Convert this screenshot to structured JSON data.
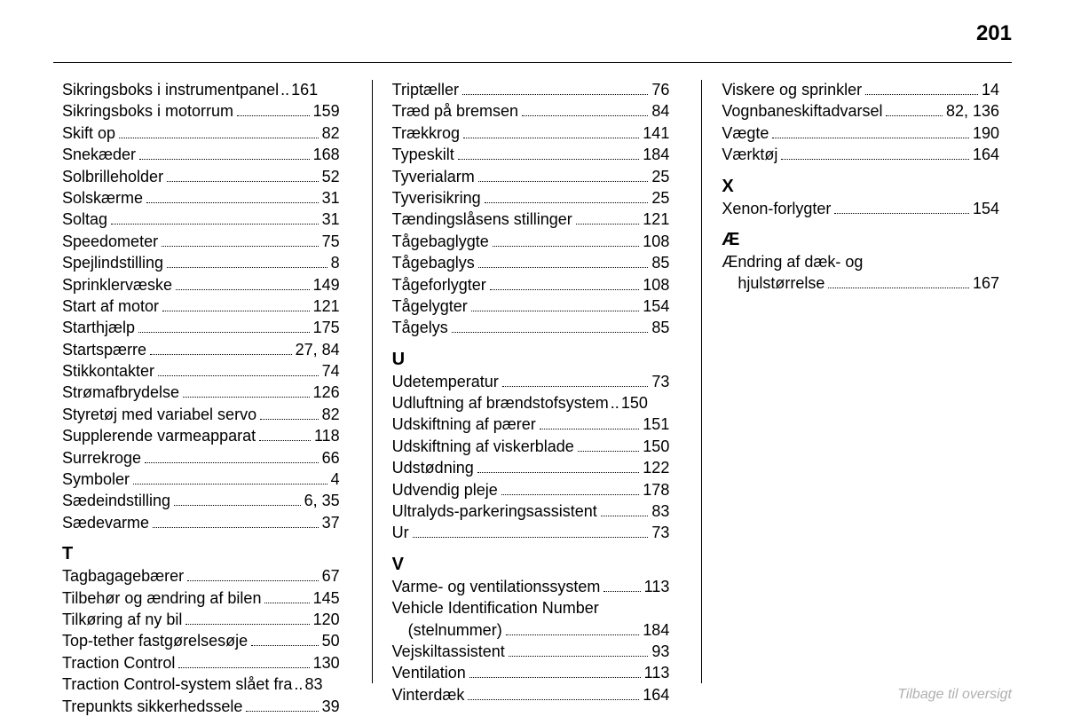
{
  "page": {
    "number": "201",
    "footer": "Tilbage til oversigt",
    "text_color": "#000000",
    "footer_color": "#b0b0b0",
    "background_color": "#ffffff",
    "font_size_entry": 18,
    "font_size_section": 20,
    "font_size_pagenum": 24
  },
  "columns": [
    [
      {
        "type": "entry",
        "label": "Sikringsboks i instrumentpanel",
        "page": "161",
        "dots": ".."
      },
      {
        "type": "entry",
        "label": "Sikringsboks i motorrum",
        "page": "159"
      },
      {
        "type": "entry",
        "label": "Skift op",
        "page": "82"
      },
      {
        "type": "entry",
        "label": "Snekæder",
        "page": "168"
      },
      {
        "type": "entry",
        "label": "Solbrilleholder",
        "page": "52"
      },
      {
        "type": "entry",
        "label": "Solskærme",
        "page": "31"
      },
      {
        "type": "entry",
        "label": "Soltag",
        "page": "31"
      },
      {
        "type": "entry",
        "label": "Speedometer",
        "page": "75"
      },
      {
        "type": "entry",
        "label": "Spejlindstilling",
        "page": "8"
      },
      {
        "type": "entry",
        "label": "Sprinklervæske",
        "page": "149"
      },
      {
        "type": "entry",
        "label": "Start af motor",
        "page": "121"
      },
      {
        "type": "entry",
        "label": "Starthjælp",
        "page": "175"
      },
      {
        "type": "entry",
        "label": "Startspærre",
        "page": "27, 84"
      },
      {
        "type": "entry",
        "label": "Stikkontakter",
        "page": "74"
      },
      {
        "type": "entry",
        "label": "Strømafbrydelse",
        "page": "126"
      },
      {
        "type": "entry",
        "label": "Styretøj med variabel servo",
        "page": "82"
      },
      {
        "type": "entry",
        "label": "Supplerende varmeapparat",
        "page": "118"
      },
      {
        "type": "entry",
        "label": "Surrekroge",
        "page": "66"
      },
      {
        "type": "entry",
        "label": "Symboler",
        "page": "4"
      },
      {
        "type": "entry",
        "label": "Sædeindstilling",
        "page": "6, 35"
      },
      {
        "type": "entry",
        "label": "Sædevarme",
        "page": "37"
      },
      {
        "type": "section",
        "label": "T"
      },
      {
        "type": "entry",
        "label": "Tagbagagebærer",
        "page": "67"
      },
      {
        "type": "entry",
        "label": "Tilbehør og ændring af bilen",
        "page": "145"
      },
      {
        "type": "entry",
        "label": "Tilkøring af ny bil",
        "page": "120"
      },
      {
        "type": "entry",
        "label": "Top-tether fastgørelsesøje",
        "page": "50"
      },
      {
        "type": "entry",
        "label": "Traction Control",
        "page": "130"
      },
      {
        "type": "entry",
        "label": "Traction Control-system slået fra",
        "page": "83",
        "dots": ".."
      },
      {
        "type": "entry",
        "label": "Trepunkts sikkerhedssele",
        "page": "39"
      }
    ],
    [
      {
        "type": "entry",
        "label": "Triptæller",
        "page": "76"
      },
      {
        "type": "entry",
        "label": "Træd på bremsen",
        "page": "84"
      },
      {
        "type": "entry",
        "label": "Trækkrog",
        "page": "141"
      },
      {
        "type": "entry",
        "label": "Typeskilt",
        "page": "184"
      },
      {
        "type": "entry",
        "label": "Tyverialarm",
        "page": "25"
      },
      {
        "type": "entry",
        "label": "Tyverisikring",
        "page": "25"
      },
      {
        "type": "entry",
        "label": "Tændingslåsens stillinger",
        "page": "121"
      },
      {
        "type": "entry",
        "label": "Tågebaglygte",
        "page": "108"
      },
      {
        "type": "entry",
        "label": "Tågebaglys",
        "page": "85"
      },
      {
        "type": "entry",
        "label": "Tågeforlygter",
        "page": "108"
      },
      {
        "type": "entry",
        "label": "Tågelygter",
        "page": "154"
      },
      {
        "type": "entry",
        "label": "Tågelys",
        "page": "85"
      },
      {
        "type": "section",
        "label": "U"
      },
      {
        "type": "entry",
        "label": "Udetemperatur",
        "page": "73"
      },
      {
        "type": "entry",
        "label": "Udluftning af brændstofsystem",
        "page": "150",
        "dots": ".."
      },
      {
        "type": "entry",
        "label": "Udskiftning af pærer",
        "page": "151"
      },
      {
        "type": "entry",
        "label": "Udskiftning af viskerblade",
        "page": "150"
      },
      {
        "type": "entry",
        "label": "Udstødning",
        "page": "122"
      },
      {
        "type": "entry",
        "label": "Udvendig pleje",
        "page": "178"
      },
      {
        "type": "entry",
        "label": "Ultralyds-parkeringsassistent",
        "page": "83"
      },
      {
        "type": "entry",
        "label": "Ur",
        "page": "73"
      },
      {
        "type": "section",
        "label": "V"
      },
      {
        "type": "entry",
        "label": "Varme- og ventilationssystem",
        "page": "113"
      },
      {
        "type": "wrap",
        "line1": "Vehicle Identification Number",
        "line2": "(stelnummer)",
        "page": "184"
      },
      {
        "type": "entry",
        "label": "Vejskiltassistent",
        "page": "93"
      },
      {
        "type": "entry",
        "label": "Ventilation",
        "page": "113"
      },
      {
        "type": "entry",
        "label": "Vinterdæk",
        "page": "164"
      }
    ],
    [
      {
        "type": "entry",
        "label": "Viskere og sprinkler",
        "page": "14"
      },
      {
        "type": "entry",
        "label": "Vognbaneskiftadvarsel",
        "page": "82, 136"
      },
      {
        "type": "entry",
        "label": "Vægte",
        "page": "190"
      },
      {
        "type": "entry",
        "label": "Værktøj",
        "page": "164"
      },
      {
        "type": "section",
        "label": "X"
      },
      {
        "type": "entry",
        "label": "Xenon-forlygter",
        "page": "154"
      },
      {
        "type": "section",
        "label": "Æ"
      },
      {
        "type": "wrap",
        "line1": "Ændring af dæk- og",
        "line2": "hjulstørrelse",
        "page": "167"
      }
    ]
  ]
}
